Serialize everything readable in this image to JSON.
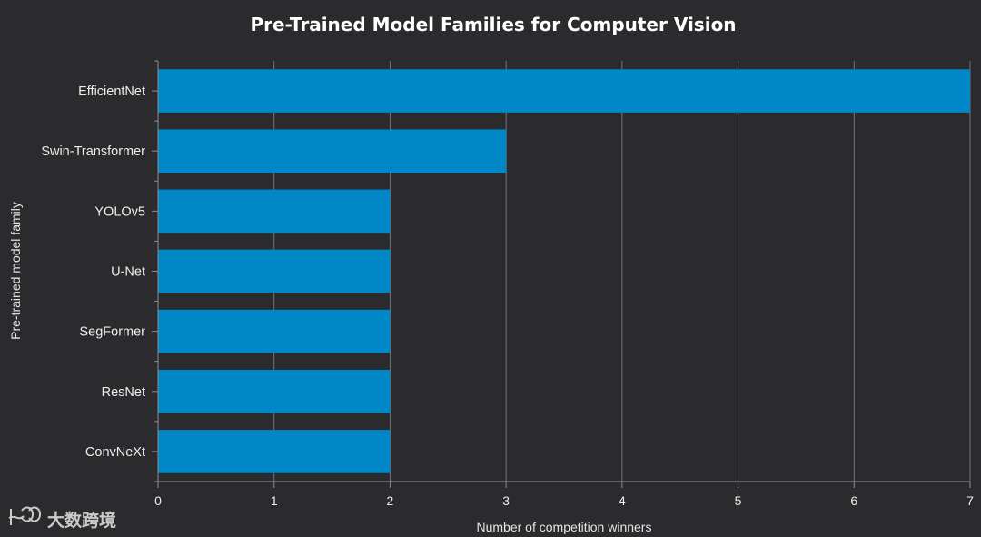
{
  "chart_data": {
    "type": "bar",
    "orientation": "horizontal",
    "title": "Pre-Trained Model Families for Computer Vision",
    "xlabel": "Number of competition winners",
    "ylabel": "Pre-trained model family",
    "categories": [
      "EfficientNet",
      "Swin-Transformer",
      "YOLOv5",
      "U-Net",
      "SegFormer",
      "ResNet",
      "ConvNeXt"
    ],
    "values": [
      7,
      3,
      2,
      2,
      2,
      2,
      2
    ],
    "xlim": [
      0,
      7
    ],
    "xticks": [
      "0",
      "1",
      "2",
      "3",
      "4",
      "5",
      "6",
      "7"
    ],
    "grid": true,
    "colors": {
      "bar": "#0087c8",
      "background": "#2b2b2d",
      "grid": "#6b7684"
    }
  },
  "watermark": {
    "text": "大数跨境"
  }
}
